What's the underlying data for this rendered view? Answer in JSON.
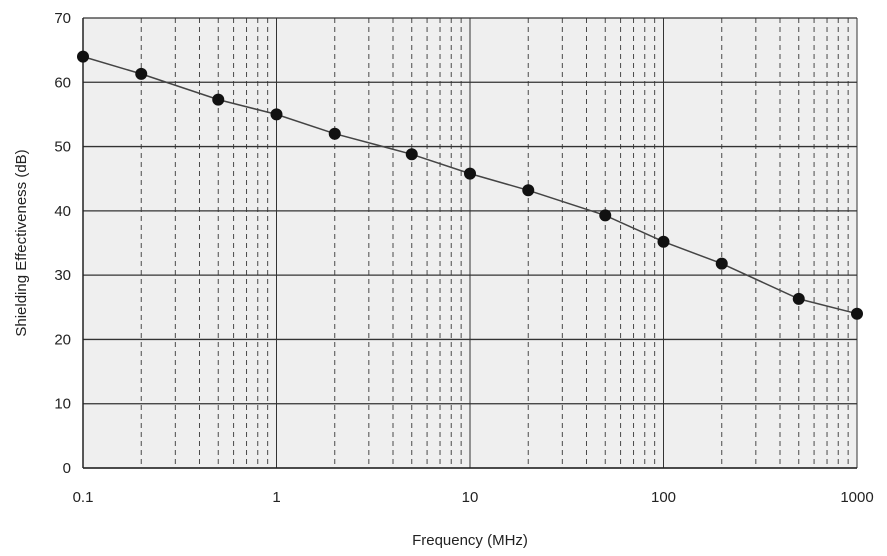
{
  "chart_data": {
    "type": "line",
    "title": "",
    "xlabel": "Frequency (MHz)",
    "ylabel": "Shielding Effectiveness (dB)",
    "xscale": "log",
    "xlim": [
      0.1,
      1000
    ],
    "ylim": [
      0,
      70
    ],
    "xticks": [
      0.1,
      1,
      10,
      100,
      1000
    ],
    "xtick_labels": [
      "0.1",
      "1",
      "10",
      "100",
      "1000"
    ],
    "yticks": [
      0,
      10,
      20,
      30,
      40,
      50,
      60,
      70
    ],
    "ytick_labels": [
      "0",
      "10",
      "20",
      "30",
      "40",
      "50",
      "60",
      "70"
    ],
    "grid": true,
    "minor_grid": "dashed",
    "legend": "none",
    "series": [
      {
        "x": [
          0.1,
          0.2,
          0.5,
          1,
          2,
          5,
          10,
          20,
          50,
          100,
          200,
          500,
          1000
        ],
        "y": [
          64,
          61.3,
          57.3,
          55,
          52,
          48.8,
          45.8,
          43.2,
          39.3,
          35.2,
          31.8,
          26.3,
          24
        ],
        "marker": "circle",
        "color": "#111111"
      }
    ]
  },
  "colors": {
    "plot_background": "#efefef",
    "major_grid": "#333333",
    "minor_grid": "#4a4a4a",
    "line": "#444444",
    "marker": "#111111"
  }
}
